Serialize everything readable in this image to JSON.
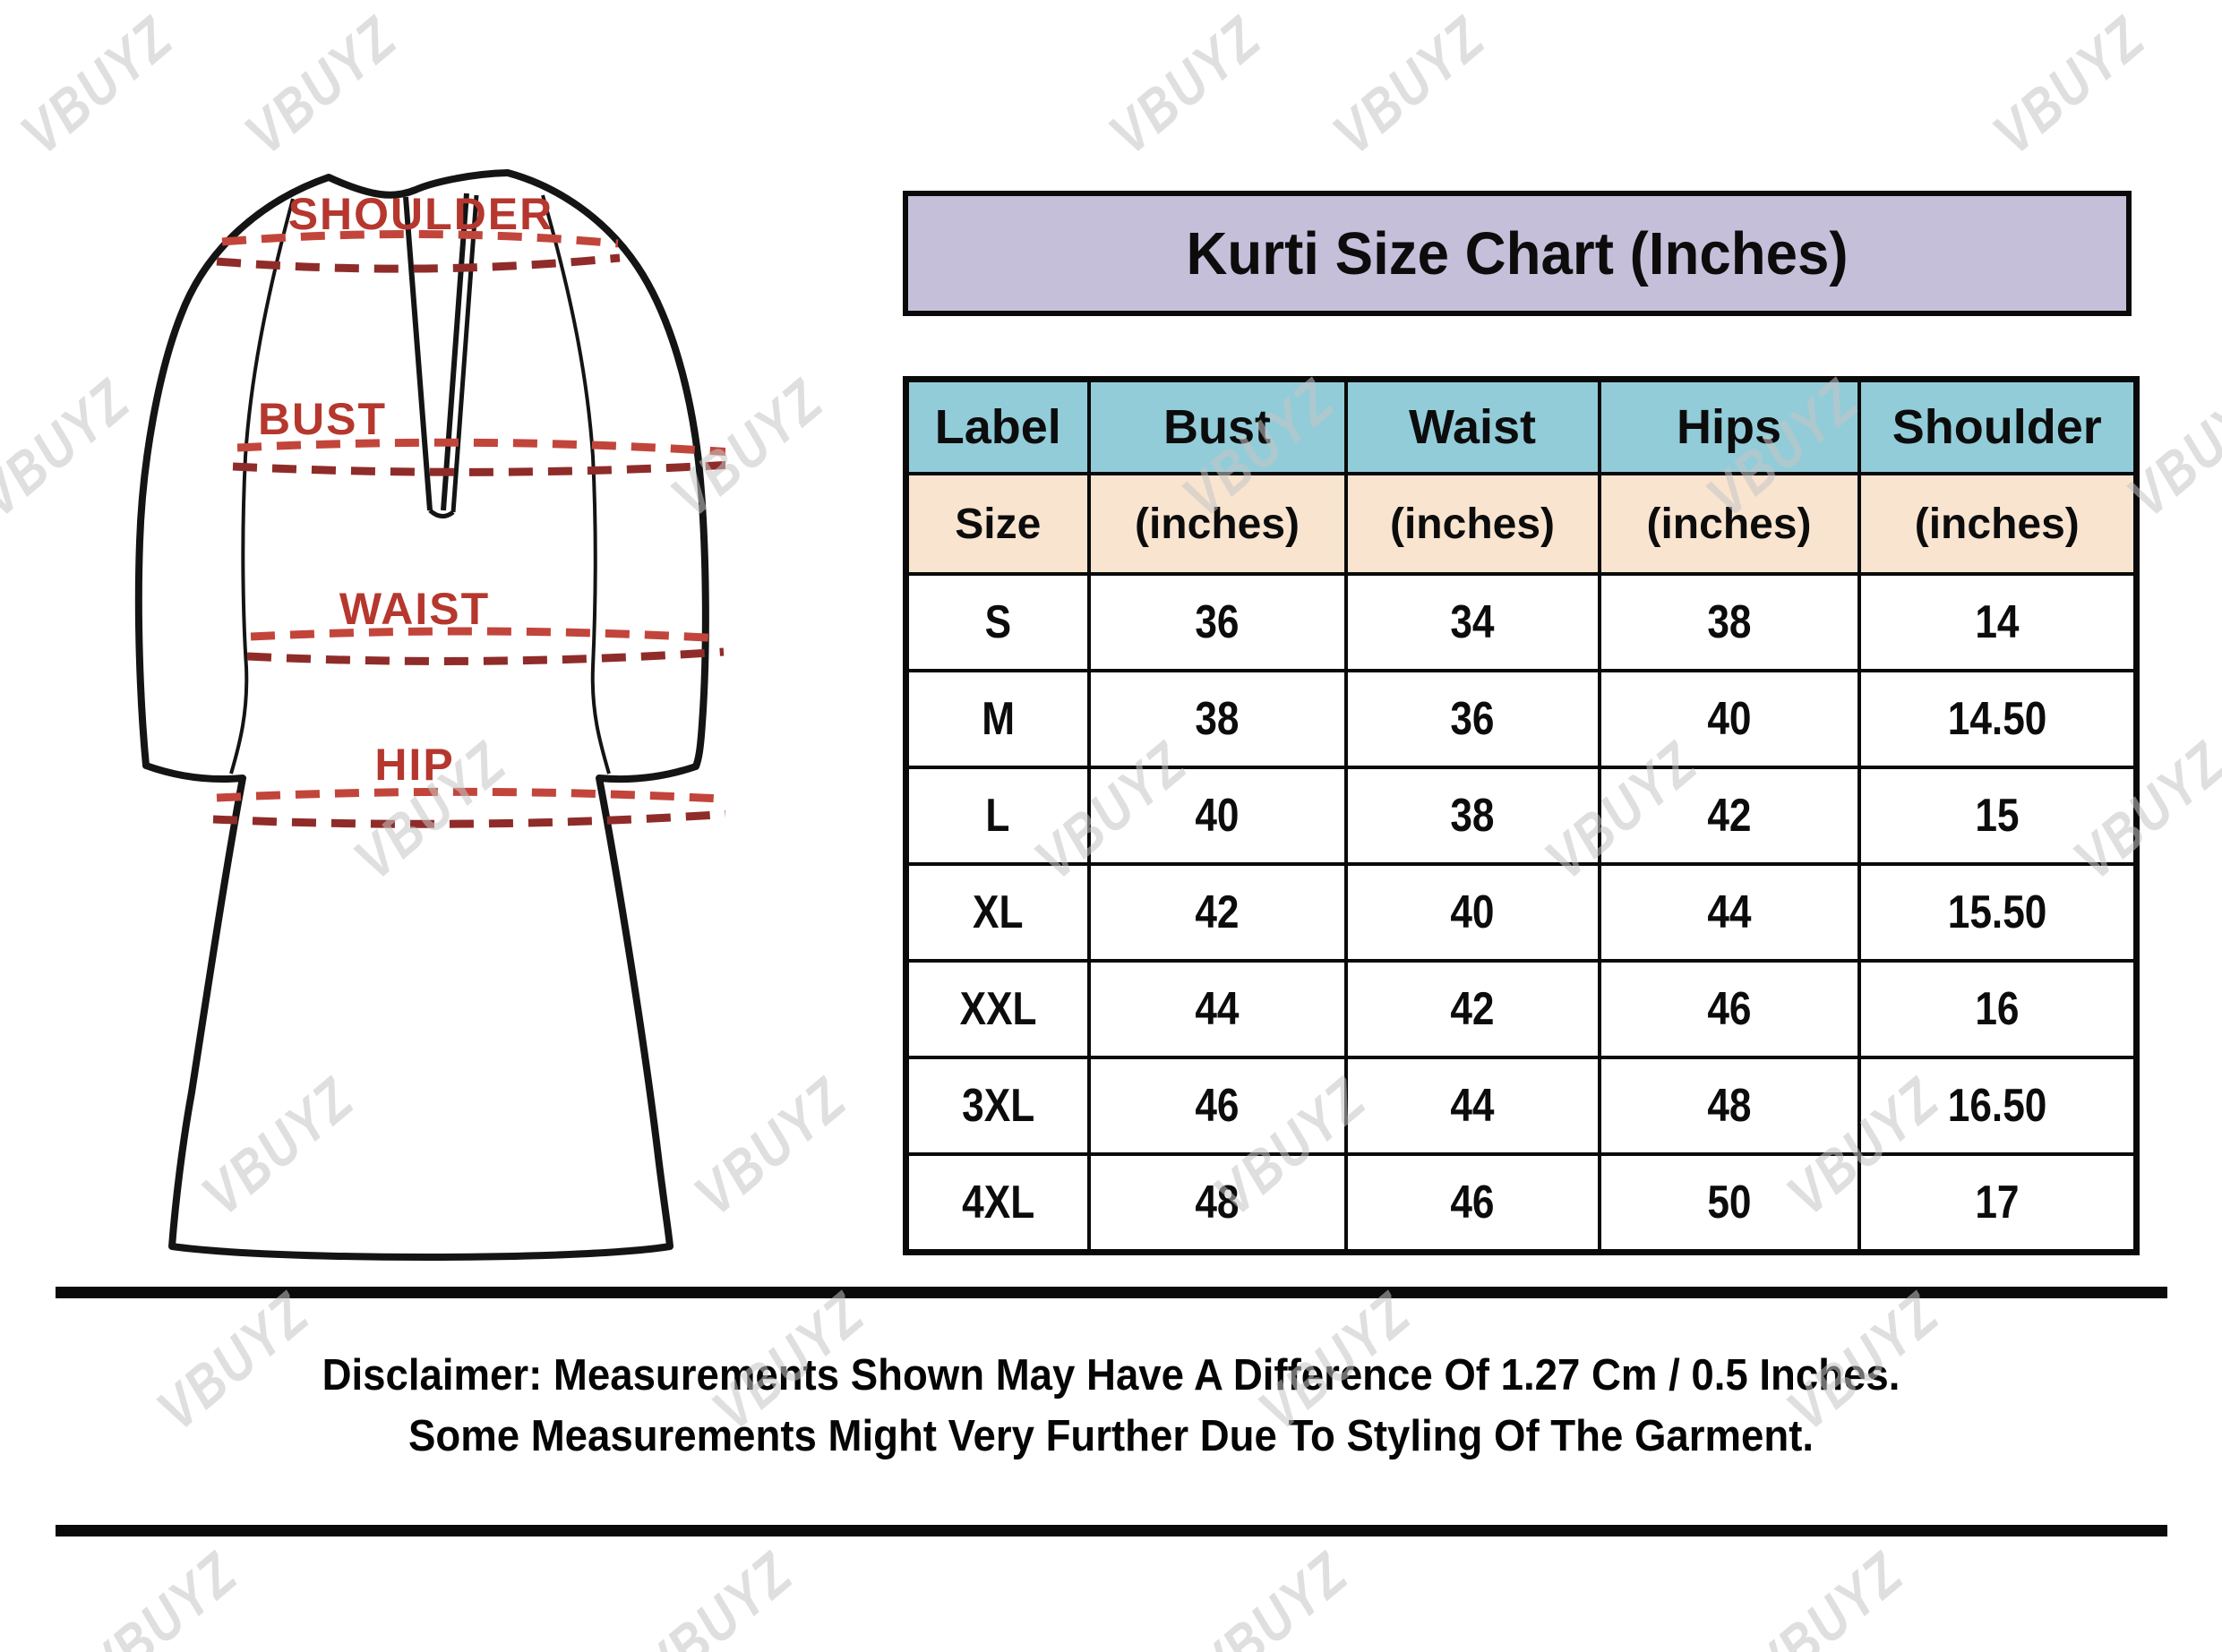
{
  "watermark": {
    "text": "VBUYZ"
  },
  "diagram": {
    "labels": {
      "shoulder": "SHOULDER",
      "bust": "BUST",
      "waist": "WAIST",
      "hip": "HIP"
    }
  },
  "title": "Kurti Size Chart (Inches)",
  "chart_data": {
    "type": "table",
    "title": "Kurti Size Chart (Inches)",
    "columns": [
      "Label",
      "Bust",
      "Waist",
      "Hips",
      "Shoulder"
    ],
    "subheader": [
      "Size",
      "(inches)",
      "(inches)",
      "(inches)",
      "(inches)"
    ],
    "rows": [
      [
        "S",
        "36",
        "34",
        "38",
        "14"
      ],
      [
        "M",
        "38",
        "36",
        "40",
        "14.50"
      ],
      [
        "L",
        "40",
        "38",
        "42",
        "15"
      ],
      [
        "XL",
        "42",
        "40",
        "44",
        "15.50"
      ],
      [
        "XXL",
        "44",
        "42",
        "46",
        "16"
      ],
      [
        "3XL",
        "46",
        "44",
        "48",
        "16.50"
      ],
      [
        "4XL",
        "48",
        "46",
        "50",
        "17"
      ]
    ]
  },
  "disclaimer": {
    "line1": "Disclaimer: Measurements Shown May Have A Difference Of 1.27 Cm / 0.5 Inches.",
    "line2": "Some Measurements Might Very Further Due To Styling Of The Garment."
  },
  "colors": {
    "title_bg": "#c6bfda",
    "header_bg": "#92ccd9",
    "subheader_bg": "#f9e4d0",
    "border": "#0a0a0a",
    "label_red": "#b5372e",
    "dash_red_light": "#c2453b",
    "dash_red_dark": "#8f2c29",
    "watermark_gray": "#c6c6c6"
  }
}
